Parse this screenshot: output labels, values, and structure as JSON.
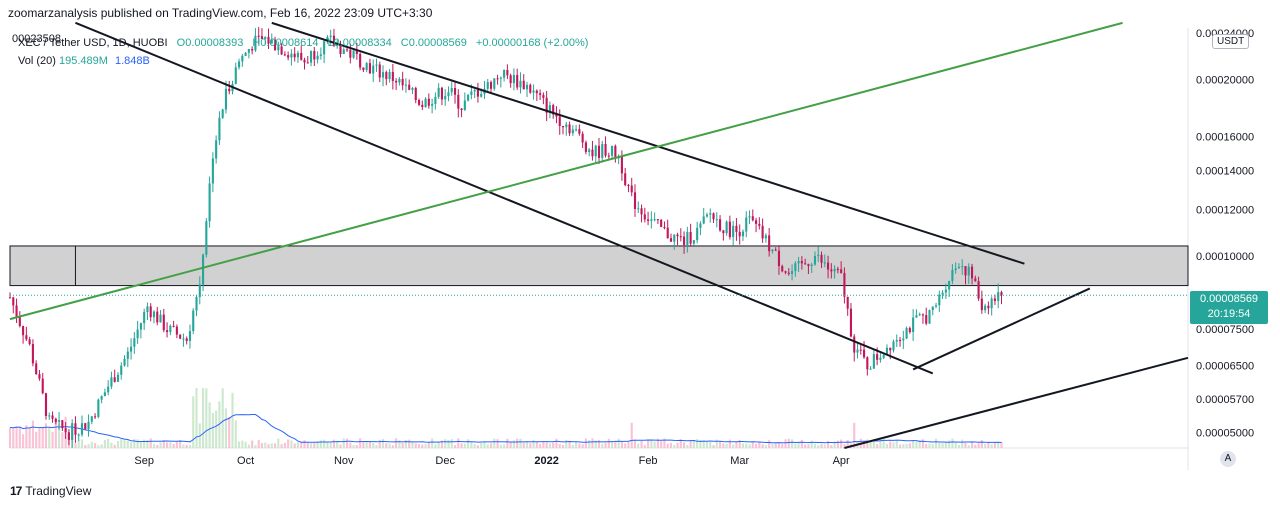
{
  "header": {
    "publisher": "zoomarzanalysis published on TradingView.com, Feb 16, 2022 23:09 UTC+3:30"
  },
  "legend": {
    "symbol": "XEC / Tether USD, 1D, HUOBI",
    "open": "O0.00008393",
    "high": "H0.00008614",
    "low": "L0.00008334",
    "close": "C0.00008569",
    "change": "+0.00000168 (+2.00%)",
    "vol_label": "Vol (20)",
    "vol_value": "195.489M",
    "vol_ma": "1.848B"
  },
  "currency": "USDT",
  "last_price": {
    "value": "0.00008569",
    "countdown": "20:19:54"
  },
  "footer": {
    "brand": "TradingView"
  },
  "auto_label": "A",
  "chart_data": {
    "type": "candlestick",
    "title": "XEC / Tether USD, 1D, HUOBI",
    "y_scale": "log",
    "ylim": [
      4.7e-05,
      0.000245
    ],
    "y_ticks": [
      "0.00024000",
      "0.00020000",
      "0.00016000",
      "0.00014000",
      "0.00012000",
      "0.00010000",
      "0.00007500",
      "0.00006500",
      "0.00005700",
      "0.00005000"
    ],
    "top_left_tick": "00023508",
    "x_ticks": [
      "Sep",
      "Oct",
      "Nov",
      "Dec",
      "2022",
      "Feb",
      "Mar",
      "Apr"
    ],
    "resistance_zone": [
      8.9e-05,
      0.000104
    ],
    "last_close": 8.569e-05,
    "price_path": [
      [
        0,
        8.5e-05
      ],
      [
        6,
        7e-05
      ],
      [
        12,
        5.2e-05
      ],
      [
        18,
        5e-05
      ],
      [
        24,
        5.2e-05
      ],
      [
        30,
        6e-05
      ],
      [
        36,
        6.8e-05
      ],
      [
        42,
        8.2e-05
      ],
      [
        48,
        7.5e-05
      ],
      [
        54,
        7.2e-05
      ],
      [
        58,
        9e-05
      ],
      [
        62,
        0.00015
      ],
      [
        66,
        0.00019
      ],
      [
        70,
        0.000215
      ],
      [
        74,
        0.00023
      ],
      [
        78,
        0.000235
      ],
      [
        82,
        0.000228
      ],
      [
        86,
        0.000222
      ],
      [
        90,
        0.000215
      ],
      [
        94,
        0.000226
      ],
      [
        98,
        0.000232
      ],
      [
        102,
        0.000225
      ],
      [
        106,
        0.000218
      ],
      [
        110,
        0.00021
      ],
      [
        114,
        0.000205
      ],
      [
        118,
        0.0002
      ],
      [
        122,
        0.00019
      ],
      [
        126,
        0.000182
      ],
      [
        130,
        0.000188
      ],
      [
        134,
        0.000192
      ],
      [
        138,
        0.00018
      ],
      [
        142,
        0.00019
      ],
      [
        146,
        0.000195
      ],
      [
        150,
        0.000205
      ],
      [
        154,
        0.0002
      ],
      [
        158,
        0.000195
      ],
      [
        162,
        0.000185
      ],
      [
        166,
        0.000175
      ],
      [
        170,
        0.000168
      ],
      [
        174,
        0.00016
      ],
      [
        178,
        0.00015
      ],
      [
        182,
        0.000152
      ],
      [
        186,
        0.000148
      ],
      [
        190,
        0.000125
      ],
      [
        194,
        0.000118
      ],
      [
        198,
        0.000112
      ],
      [
        202,
        0.000108
      ],
      [
        206,
        0.000106
      ],
      [
        210,
        0.00011
      ],
      [
        214,
        0.000118
      ],
      [
        218,
        0.000112
      ],
      [
        222,
        0.00011
      ],
      [
        226,
        0.000115
      ],
      [
        230,
        0.000108
      ],
      [
        234,
        0.0001
      ],
      [
        238,
        9.3e-05
      ],
      [
        242,
        9.6e-05
      ],
      [
        246,
        0.0001
      ],
      [
        250,
        9.5e-05
      ],
      [
        254,
        9.2e-05
      ],
      [
        258,
        7e-05
      ],
      [
        262,
        6.5e-05
      ],
      [
        266,
        6.8e-05
      ],
      [
        270,
        7.2e-05
      ],
      [
        274,
        7.5e-05
      ],
      [
        278,
        7.8e-05
      ],
      [
        282,
        8e-05
      ],
      [
        286,
        9e-05
      ],
      [
        290,
        9.8e-05
      ],
      [
        294,
        9.2e-05
      ],
      [
        297,
        8.2e-05
      ],
      [
        300,
        8.4e-05
      ],
      [
        303,
        8.569e-05
      ]
    ],
    "trendlines": [
      {
        "name": "channel-upper",
        "color": "black",
        "points": [
          [
            80,
            0.00025
          ],
          [
            310,
            9.7e-05
          ]
        ]
      },
      {
        "name": "channel-lower",
        "color": "black",
        "points": [
          [
            20,
            0.00025
          ],
          [
            282,
            6.3e-05
          ]
        ]
      },
      {
        "name": "long-trend",
        "color": "green",
        "points": [
          [
            0,
            7.8e-05
          ],
          [
            340,
            0.00025
          ]
        ]
      },
      {
        "name": "short-support",
        "color": "black",
        "points": [
          [
            276,
            6.4e-05
          ],
          [
            330,
            8.8e-05
          ]
        ]
      },
      {
        "name": "long-support",
        "color": "black",
        "points": [
          [
            255,
            4.7e-05
          ],
          [
            360,
            6.7e-05
          ]
        ]
      }
    ]
  }
}
